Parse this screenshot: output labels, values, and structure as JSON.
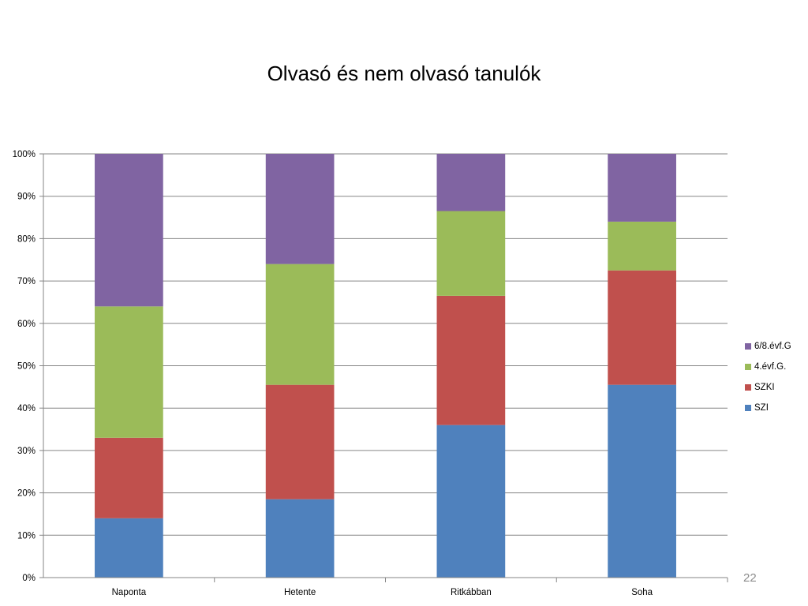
{
  "slide": {
    "page_number": "22",
    "page_number_color": "#8C8C8C"
  },
  "chart_data": {
    "type": "bar",
    "stacked": true,
    "percent_stacked": true,
    "title": "Olvasó és nem olvasó tanulók",
    "xlabel": "",
    "ylabel": "",
    "categories": [
      "Naponta",
      "Hetente",
      "Ritkábban",
      "Soha"
    ],
    "ylim": [
      0,
      100
    ],
    "y_ticks": [
      0,
      10,
      20,
      30,
      40,
      50,
      60,
      70,
      80,
      90,
      100
    ],
    "y_tick_labels": [
      "0%",
      "10%",
      "20%",
      "30%",
      "40%",
      "50%",
      "60%",
      "70%",
      "80%",
      "90%",
      "100%"
    ],
    "grid": true,
    "legend_position": "right",
    "series": [
      {
        "name": "SZI",
        "color": "#4F81BD",
        "values": [
          14,
          18.5,
          36,
          45.5
        ]
      },
      {
        "name": "SZKI",
        "color": "#C0504D",
        "values": [
          19,
          27,
          30.5,
          27
        ]
      },
      {
        "name": "4.évf.G.",
        "color": "#9BBB59",
        "values": [
          31,
          28.5,
          20,
          11.5
        ]
      },
      {
        "name": "6/8.évf.G",
        "color": "#8064A2",
        "values": [
          36,
          26,
          13.5,
          16
        ]
      }
    ]
  }
}
